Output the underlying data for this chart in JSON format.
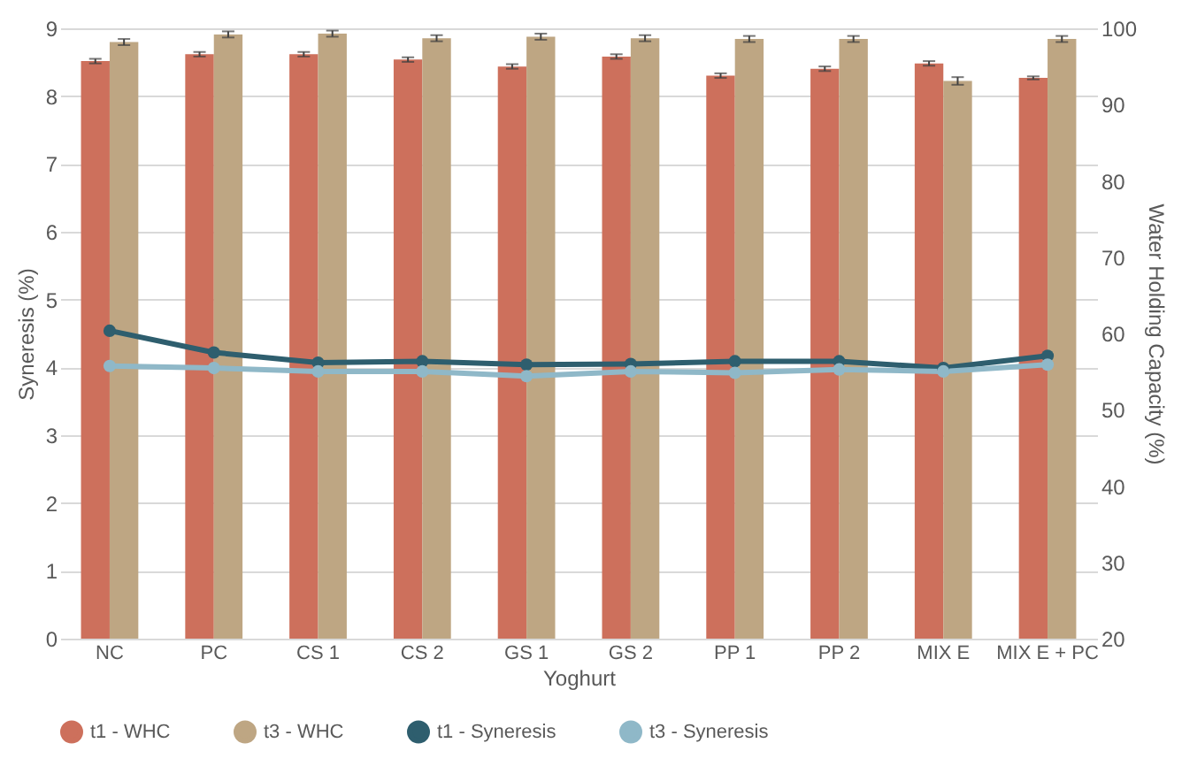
{
  "chart_data": {
    "type": "bar",
    "xlabel": "Yoghurt",
    "ylabel": "Syneresis (%)",
    "y2label": "Water Holding Capacity (%)",
    "categories": [
      "NC",
      "PC",
      "CS 1",
      "CS 2",
      "GS 1",
      "GS 2",
      "PP 1",
      "PP 2",
      "MIX E",
      "MIX E + PC"
    ],
    "series": [
      {
        "name": "t1 - WHC",
        "axis": "y2",
        "color": "#cd705c",
        "values": [
          95.7,
          96.6,
          96.6,
          95.9,
          95.0,
          96.3,
          93.8,
          94.7,
          95.4,
          93.5
        ],
        "errors": [
          0.3,
          0.3,
          0.3,
          0.3,
          0.3,
          0.3,
          0.3,
          0.3,
          0.3,
          0.2
        ]
      },
      {
        "name": "t3 - WHC",
        "axis": "y2",
        "color": "#bea683",
        "values": [
          98.2,
          99.2,
          99.3,
          98.7,
          98.9,
          98.7,
          98.6,
          98.6,
          93.1,
          98.6
        ],
        "errors": [
          0.4,
          0.4,
          0.4,
          0.4,
          0.4,
          0.4,
          0.4,
          0.4,
          0.5,
          0.4
        ]
      },
      {
        "name": "t1 - Syneresis",
        "type": "line",
        "axis": "y",
        "color": "#2e5e6e",
        "values": [
          4.54,
          4.22,
          4.07,
          4.09,
          4.04,
          4.05,
          4.09,
          4.09,
          3.99,
          4.17
        ]
      },
      {
        "name": "t3 - Syneresis",
        "type": "line",
        "axis": "y",
        "color": "#8fb8c8",
        "values": [
          4.02,
          3.99,
          3.94,
          3.94,
          3.87,
          3.94,
          3.92,
          3.97,
          3.94,
          4.04
        ]
      }
    ],
    "ylim": [
      0,
      9
    ],
    "yticks": [
      0,
      1,
      2,
      3,
      4,
      5,
      6,
      7,
      8,
      9
    ],
    "y2lim": [
      20,
      100
    ],
    "y2ticks": [
      20,
      30,
      40,
      50,
      60,
      70,
      80,
      90,
      100
    ],
    "grid": "y",
    "legend": "bottom",
    "marker": "circle",
    "line_style": "solid"
  }
}
